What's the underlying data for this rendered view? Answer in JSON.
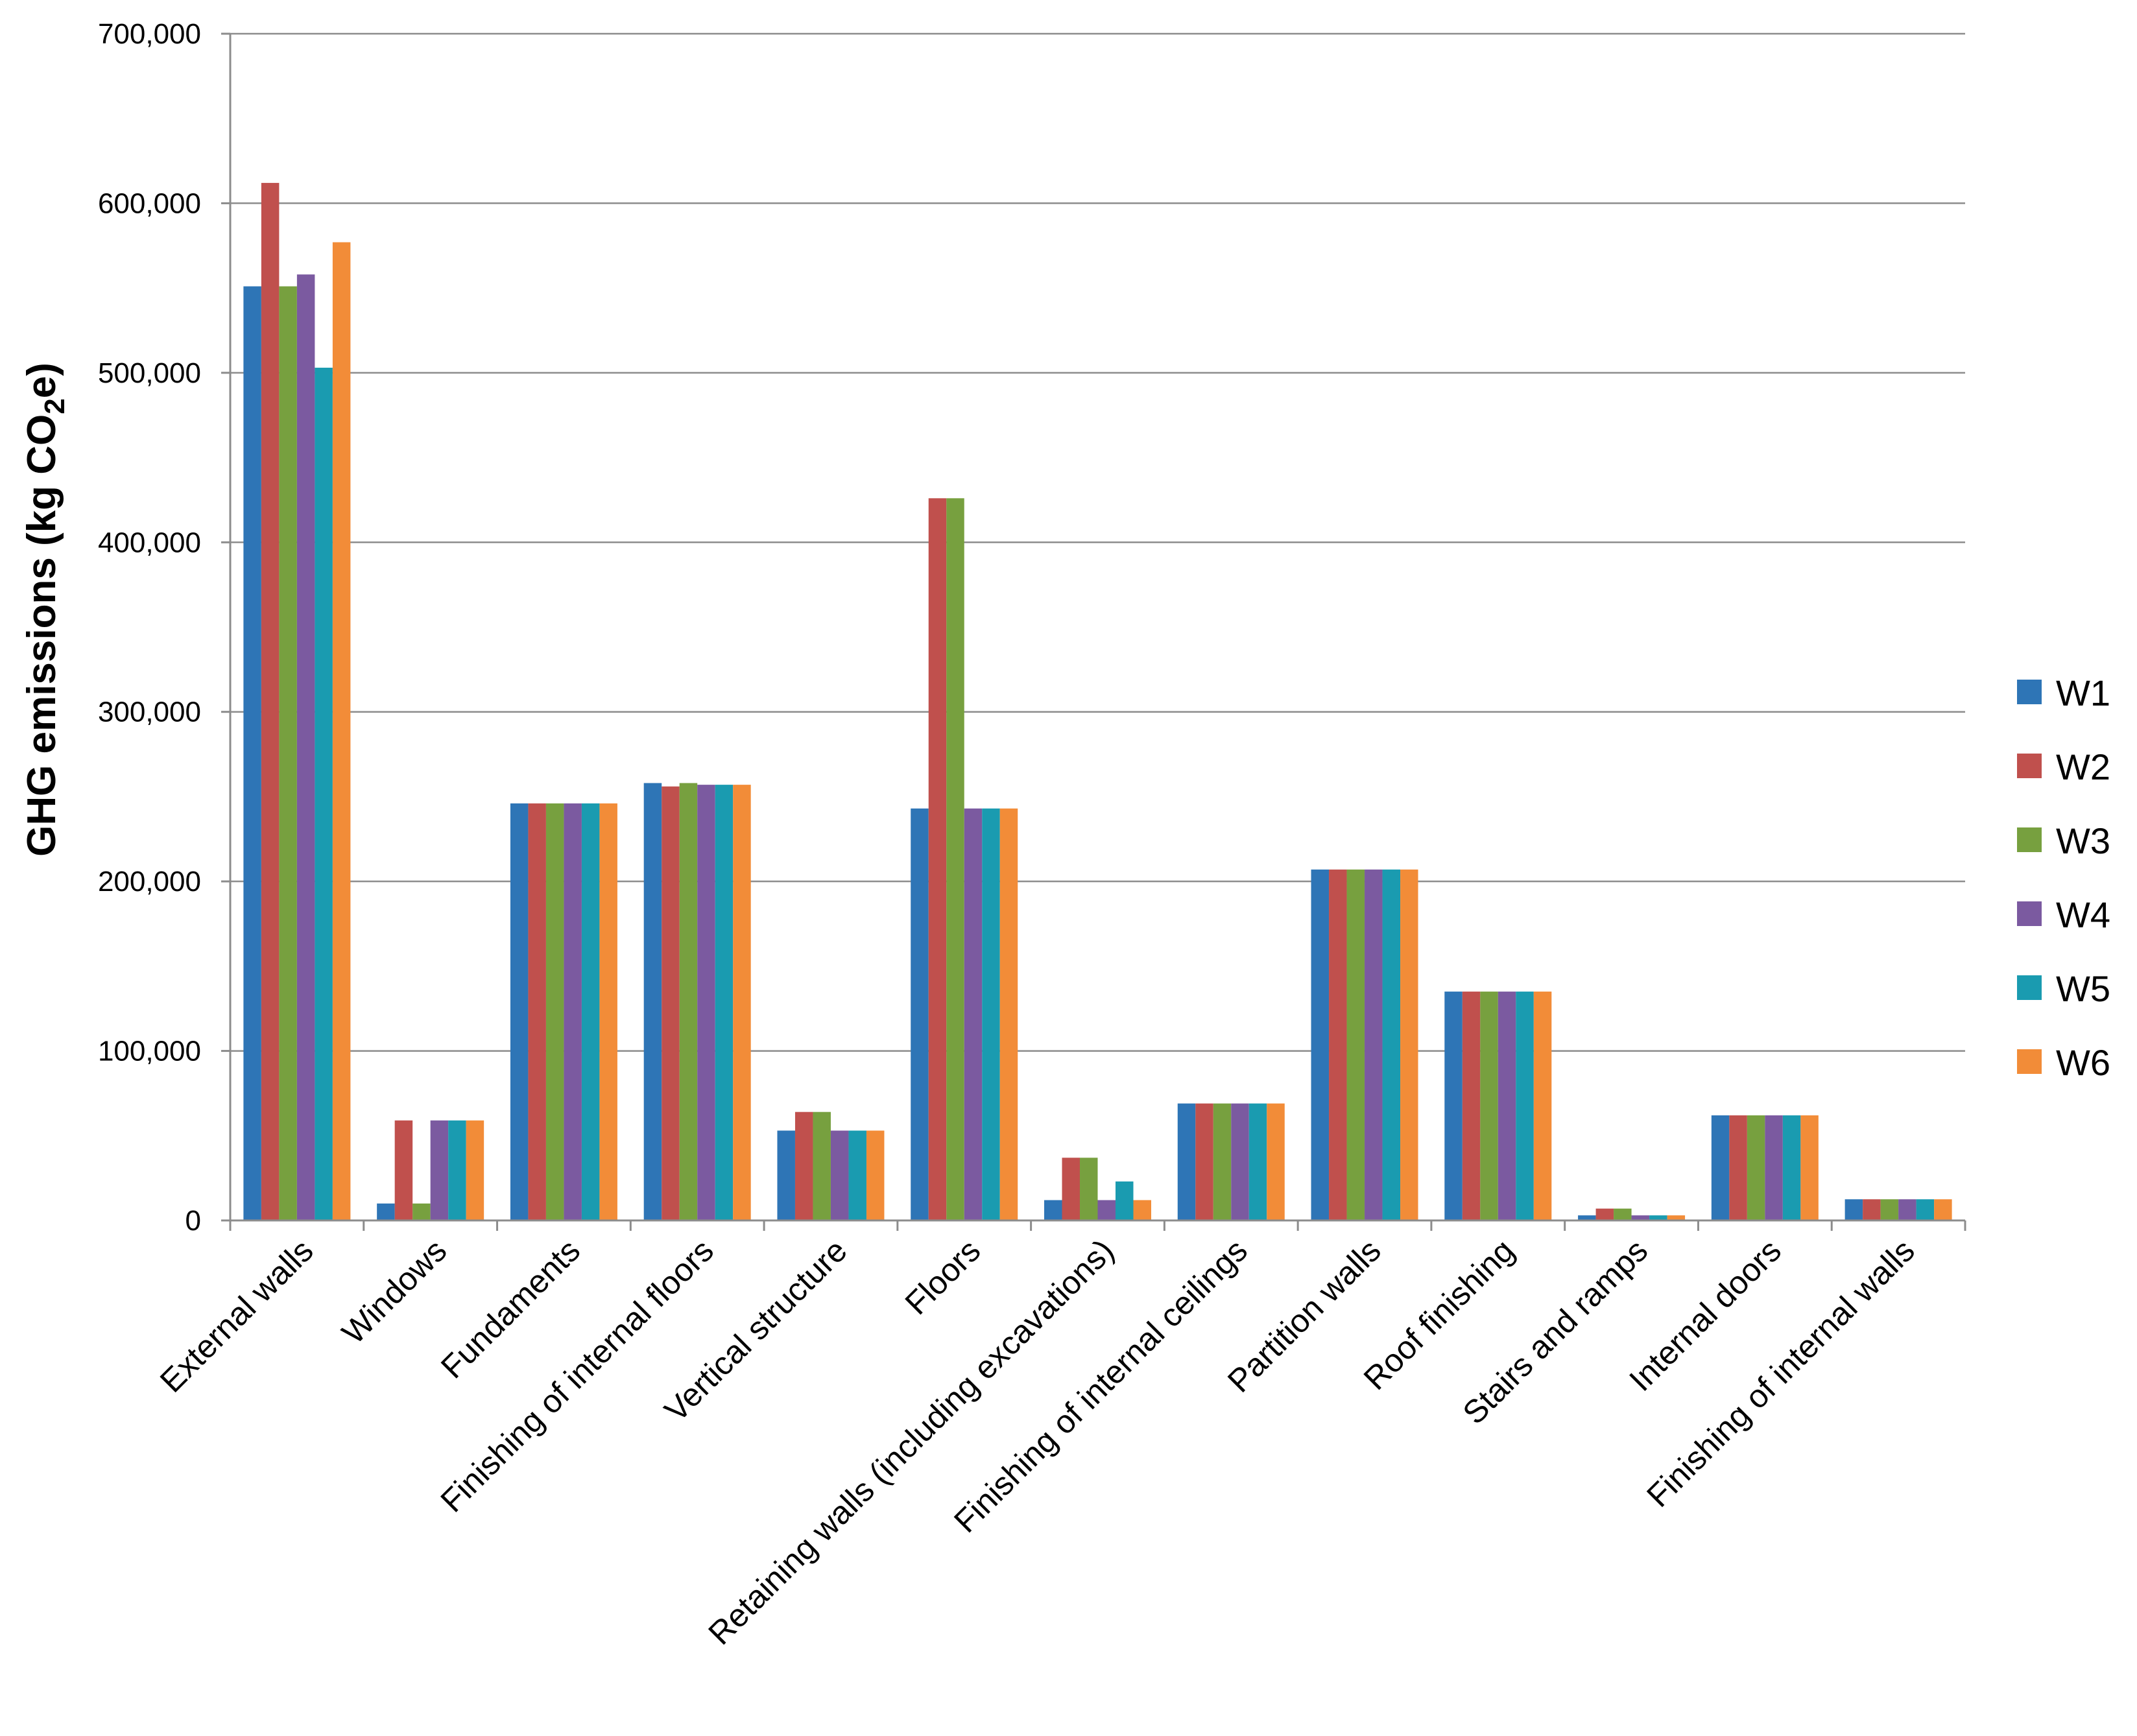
{
  "chart_data": {
    "type": "bar",
    "title": "",
    "xlabel": "",
    "ylabel": {
      "prefix": "GHG emissions (kg CO",
      "subscript": "2",
      "suffix": "e)"
    },
    "ylim": [
      0,
      700000
    ],
    "yticks": [
      0,
      100000,
      200000,
      300000,
      400000,
      500000,
      600000,
      700000
    ],
    "ytick_labels": [
      "0",
      "100,000",
      "200,000",
      "300,000",
      "400,000",
      "500,000",
      "600,000",
      "700,000"
    ],
    "grid": true,
    "legend_position": "right",
    "categories": [
      "External walls",
      "Windows",
      "Fundaments",
      "Finishing of internal floors",
      "Vertical structure",
      "Floors",
      "Retaining walls (including excavations)",
      "Finishing of internal ceilings",
      "Partition walls",
      "Roof finishing",
      "Stairs and ramps",
      "Internal doors",
      "Finishing of internal walls"
    ],
    "series": [
      {
        "name": "W1",
        "color": "#2e75b6",
        "values": [
          551000,
          10000,
          246000,
          258000,
          53000,
          243000,
          12000,
          69000,
          207000,
          135000,
          3000,
          62000,
          12500
        ]
      },
      {
        "name": "W2",
        "color": "#c0504d",
        "values": [
          612000,
          59000,
          246000,
          256000,
          64000,
          426000,
          37000,
          69000,
          207000,
          135000,
          7000,
          62000,
          12500
        ]
      },
      {
        "name": "W3",
        "color": "#77a03f",
        "values": [
          551000,
          10000,
          246000,
          258000,
          64000,
          426000,
          37000,
          69000,
          207000,
          135000,
          7000,
          62000,
          12500
        ]
      },
      {
        "name": "W4",
        "color": "#7b5aa0",
        "values": [
          558000,
          59000,
          246000,
          257000,
          53000,
          243000,
          12000,
          69000,
          207000,
          135000,
          3000,
          62000,
          12500
        ]
      },
      {
        "name": "W5",
        "color": "#1a9bb0",
        "values": [
          503000,
          59000,
          246000,
          257000,
          53000,
          243000,
          23000,
          69000,
          207000,
          135000,
          3000,
          62000,
          12500
        ]
      },
      {
        "name": "W6",
        "color": "#f28c38",
        "values": [
          577000,
          59000,
          246000,
          257000,
          53000,
          243000,
          12000,
          69000,
          207000,
          135000,
          3000,
          62000,
          12500
        ]
      }
    ]
  }
}
